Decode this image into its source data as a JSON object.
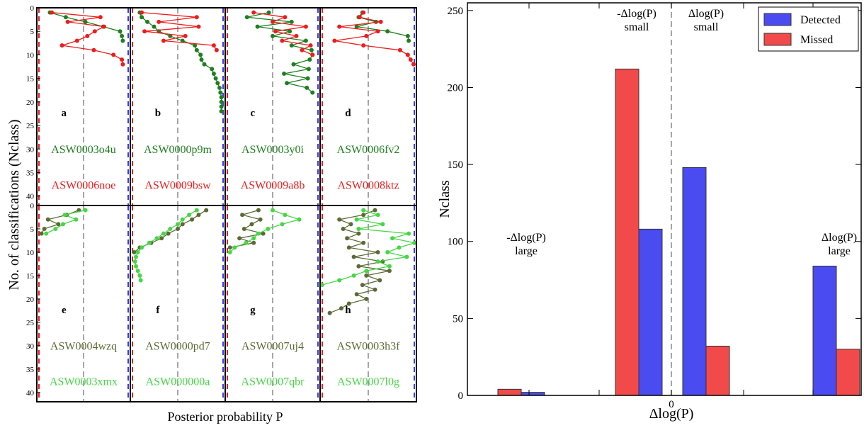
{
  "colors": {
    "green": "#1e7f1e",
    "red": "#ee1c1c",
    "dark_olive": "#5c6a34",
    "light_green": "#46d646",
    "blue": "#3a3af5",
    "bar_red": "#f24a4a",
    "bar_blue": "#4b4bf2"
  },
  "chart_data": [
    {
      "type": "line",
      "xlabel": "Posterior probability P",
      "ylabel": "No. of classifications (Nclass)",
      "ylim": [
        0,
        42
      ],
      "yticks": [
        0,
        5,
        10,
        15,
        20,
        25,
        30,
        35,
        40
      ],
      "panels": [
        {
          "label": "a",
          "series": [
            {
              "name": "ASW0003o4u",
              "color": "#1e7f1e",
              "p": [
                0.14,
                0.31,
                0.52,
                0.71,
                0.89,
                0.91,
                0.92
              ],
              "n": [
                1,
                2,
                3,
                4,
                5,
                6,
                7
              ]
            },
            {
              "name": "ASW0006noe",
              "color": "#ee1c1c",
              "p": [
                0.16,
                0.68,
                0.33,
                0.72,
                0.62,
                0.54,
                0.43,
                0.27,
                0.61,
                0.82,
                0.91,
                0.92
              ],
              "n": [
                1,
                2,
                3,
                4,
                5,
                6,
                7,
                8,
                9,
                10,
                11,
                12
              ]
            }
          ]
        },
        {
          "label": "b",
          "series": [
            {
              "name": "ASW0000p9m",
              "color": "#1e7f1e",
              "p": [
                0.1,
                0.12,
                0.18,
                0.25,
                0.3,
                0.42,
                0.55,
                0.68,
                0.7,
                0.74,
                0.75,
                0.78,
                0.86,
                0.88,
                0.9,
                0.92,
                0.94,
                0.95,
                0.96,
                0.96,
                0.96,
                0.96
              ],
              "n": [
                1,
                2,
                3,
                4,
                5,
                6,
                7,
                8,
                9,
                10,
                11,
                12,
                13,
                14,
                15,
                16,
                17,
                18,
                19,
                20,
                21,
                22
              ]
            },
            {
              "name": "ASW0009bsw",
              "color": "#ee1c1c",
              "p": [
                0.12,
                0.7,
                0.3,
                0.72,
                0.15,
                0.58,
                0.35,
                0.88,
                0.91
              ],
              "n": [
                1,
                2,
                3,
                4,
                5,
                6,
                7,
                8,
                9
              ]
            }
          ]
        },
        {
          "label": "c",
          "series": [
            {
              "name": "ASW0003y0i",
              "color": "#1e7f1e",
              "p": [
                0.46,
                0.23,
                0.7,
                0.34,
                0.68,
                0.5,
                0.85,
                0.7,
                0.91,
                0.92,
                0.89,
                0.72,
                0.88,
                0.62,
                0.87,
                0.65,
                0.86,
                0.92
              ],
              "n": [
                1,
                2,
                3,
                4,
                5,
                6,
                7,
                8,
                9,
                10,
                11,
                12,
                13,
                14,
                15,
                16,
                17,
                18
              ]
            },
            {
              "name": "ASW0009a8b",
              "color": "#ee1c1c",
              "p": [
                0.3,
                0.63,
                0.5,
                0.85,
                0.53,
                0.75,
                0.6,
                0.9,
                0.81,
                0.92
              ],
              "n": [
                1,
                2,
                3,
                4,
                5,
                6,
                7,
                8,
                9,
                10
              ]
            }
          ]
        },
        {
          "label": "d",
          "series": [
            {
              "name": "ASW0006fv2",
              "color": "#1e7f1e",
              "p": [
                0.44,
                0.4,
                0.58,
                0.38,
                0.7,
                0.91,
                0.92
              ],
              "n": [
                1,
                2,
                3,
                4,
                5,
                6,
                7
              ]
            },
            {
              "name": "ASW0008ktz",
              "color": "#ee1c1c",
              "p": [
                0.45,
                0.41,
                0.63,
                0.2,
                0.6,
                0.48,
                0.15,
                0.45,
                0.83,
                0.91,
                0.94,
                0.97
              ],
              "n": [
                1,
                2,
                3,
                4,
                5,
                6,
                7,
                8,
                9,
                10,
                11,
                12
              ]
            }
          ]
        },
        {
          "label": "e",
          "series": [
            {
              "name": "ASW0004wzq",
              "color": "#5c6a34",
              "p": [
                0.45,
                0.32,
                0.12,
                0.23,
                0.08,
                0.05
              ],
              "n": [
                1,
                2,
                3,
                4,
                5,
                6
              ]
            },
            {
              "name": "ASW0003xmx",
              "color": "#46d646",
              "p": [
                0.52,
                0.3,
                0.42,
                0.28,
                0.2,
                0.1
              ],
              "n": [
                1,
                2,
                3,
                4,
                5,
                6
              ]
            }
          ]
        },
        {
          "label": "f",
          "series": [
            {
              "name": "ASW0000pd7",
              "color": "#5c6a34",
              "p": [
                0.8,
                0.72,
                0.65,
                0.55,
                0.5,
                0.4,
                0.33,
                0.22,
                0.1,
                0.04
              ],
              "n": [
                1,
                2,
                3,
                4,
                5,
                6,
                7,
                8,
                9,
                10
              ]
            },
            {
              "name": "ASW000000a",
              "color": "#46d646",
              "p": [
                0.7,
                0.62,
                0.55,
                0.5,
                0.42,
                0.35,
                0.28,
                0.2,
                0.12,
                0.08,
                0.06,
                0.05,
                0.06,
                0.08,
                0.1,
                0.11
              ],
              "n": [
                1,
                2,
                3,
                4,
                5,
                6,
                7,
                8,
                9,
                10,
                11,
                12,
                13,
                14,
                15,
                16
              ]
            }
          ]
        },
        {
          "label": "g",
          "series": [
            {
              "name": "ASW0007uj4",
              "color": "#5c6a34",
              "p": [
                0.35,
                0.18,
                0.37,
                0.28,
                0.2,
                0.4,
                0.15,
                0.3,
                0.05
              ],
              "n": [
                1,
                2,
                3,
                4,
                5,
                6,
                7,
                8,
                9
              ]
            },
            {
              "name": "ASW0007qbr",
              "color": "#46d646",
              "p": [
                0.5,
                0.63,
                0.78,
                0.6,
                0.45,
                0.35,
                0.3,
                0.22,
                0.1,
                0.05
              ],
              "n": [
                1,
                2,
                3,
                4,
                5,
                6,
                7,
                8,
                9,
                10
              ]
            }
          ]
        },
        {
          "label": "h",
          "series": [
            {
              "name": "ASW0003h3f",
              "color": "#5c6a34",
              "p": [
                0.57,
                0.45,
                0.2,
                0.32,
                0.24,
                0.4,
                0.28,
                0.45,
                0.3,
                0.6,
                0.35,
                0.65,
                0.4,
                0.72,
                0.48,
                0.62,
                0.44,
                0.57,
                0.38,
                0.48,
                0.3,
                0.22,
                0.1
              ],
              "n": [
                1,
                2,
                3,
                4,
                5,
                6,
                7,
                8,
                9,
                10,
                11,
                12,
                13,
                14,
                15,
                16,
                17,
                18,
                19,
                20,
                21,
                22,
                23
              ]
            },
            {
              "name": "ASW0007l0g",
              "color": "#46d646",
              "p": [
                0.45,
                0.6,
                0.38,
                0.65,
                0.4,
                0.92,
                0.75,
                0.98,
                0.82,
                0.7,
                0.9,
                0.6,
                0.72,
                0.48,
                0.35,
                0.2,
                0.02
              ],
              "n": [
                1,
                2,
                3,
                4,
                5,
                6,
                7,
                8,
                9,
                10,
                11,
                12,
                13,
                14,
                15,
                16,
                17
              ]
            }
          ]
        }
      ]
    },
    {
      "type": "bar",
      "xlabel": "Δlog(P)",
      "ylabel": "Nclass",
      "ylim": [
        0,
        255
      ],
      "yticks": [
        0,
        50,
        100,
        150,
        200,
        250
      ],
      "xtick_label": "0",
      "legend_placement": "top-right",
      "categories_annotations": [
        {
          "line1": "-Δlog(P)",
          "line2": "large"
        },
        {
          "line1": "-Δlog(P)",
          "line2": "small"
        },
        {
          "line1": "Δlog(P)",
          "line2": "small"
        },
        {
          "line1": "Δlog(P)",
          "line2": "large"
        }
      ],
      "series": [
        {
          "name": "Detected",
          "color": "#4b4bf2",
          "values": [
            2,
            108,
            148,
            84
          ]
        },
        {
          "name": "Missed",
          "color": "#f24a4a",
          "values": [
            4,
            212,
            32,
            30
          ]
        }
      ]
    }
  ]
}
